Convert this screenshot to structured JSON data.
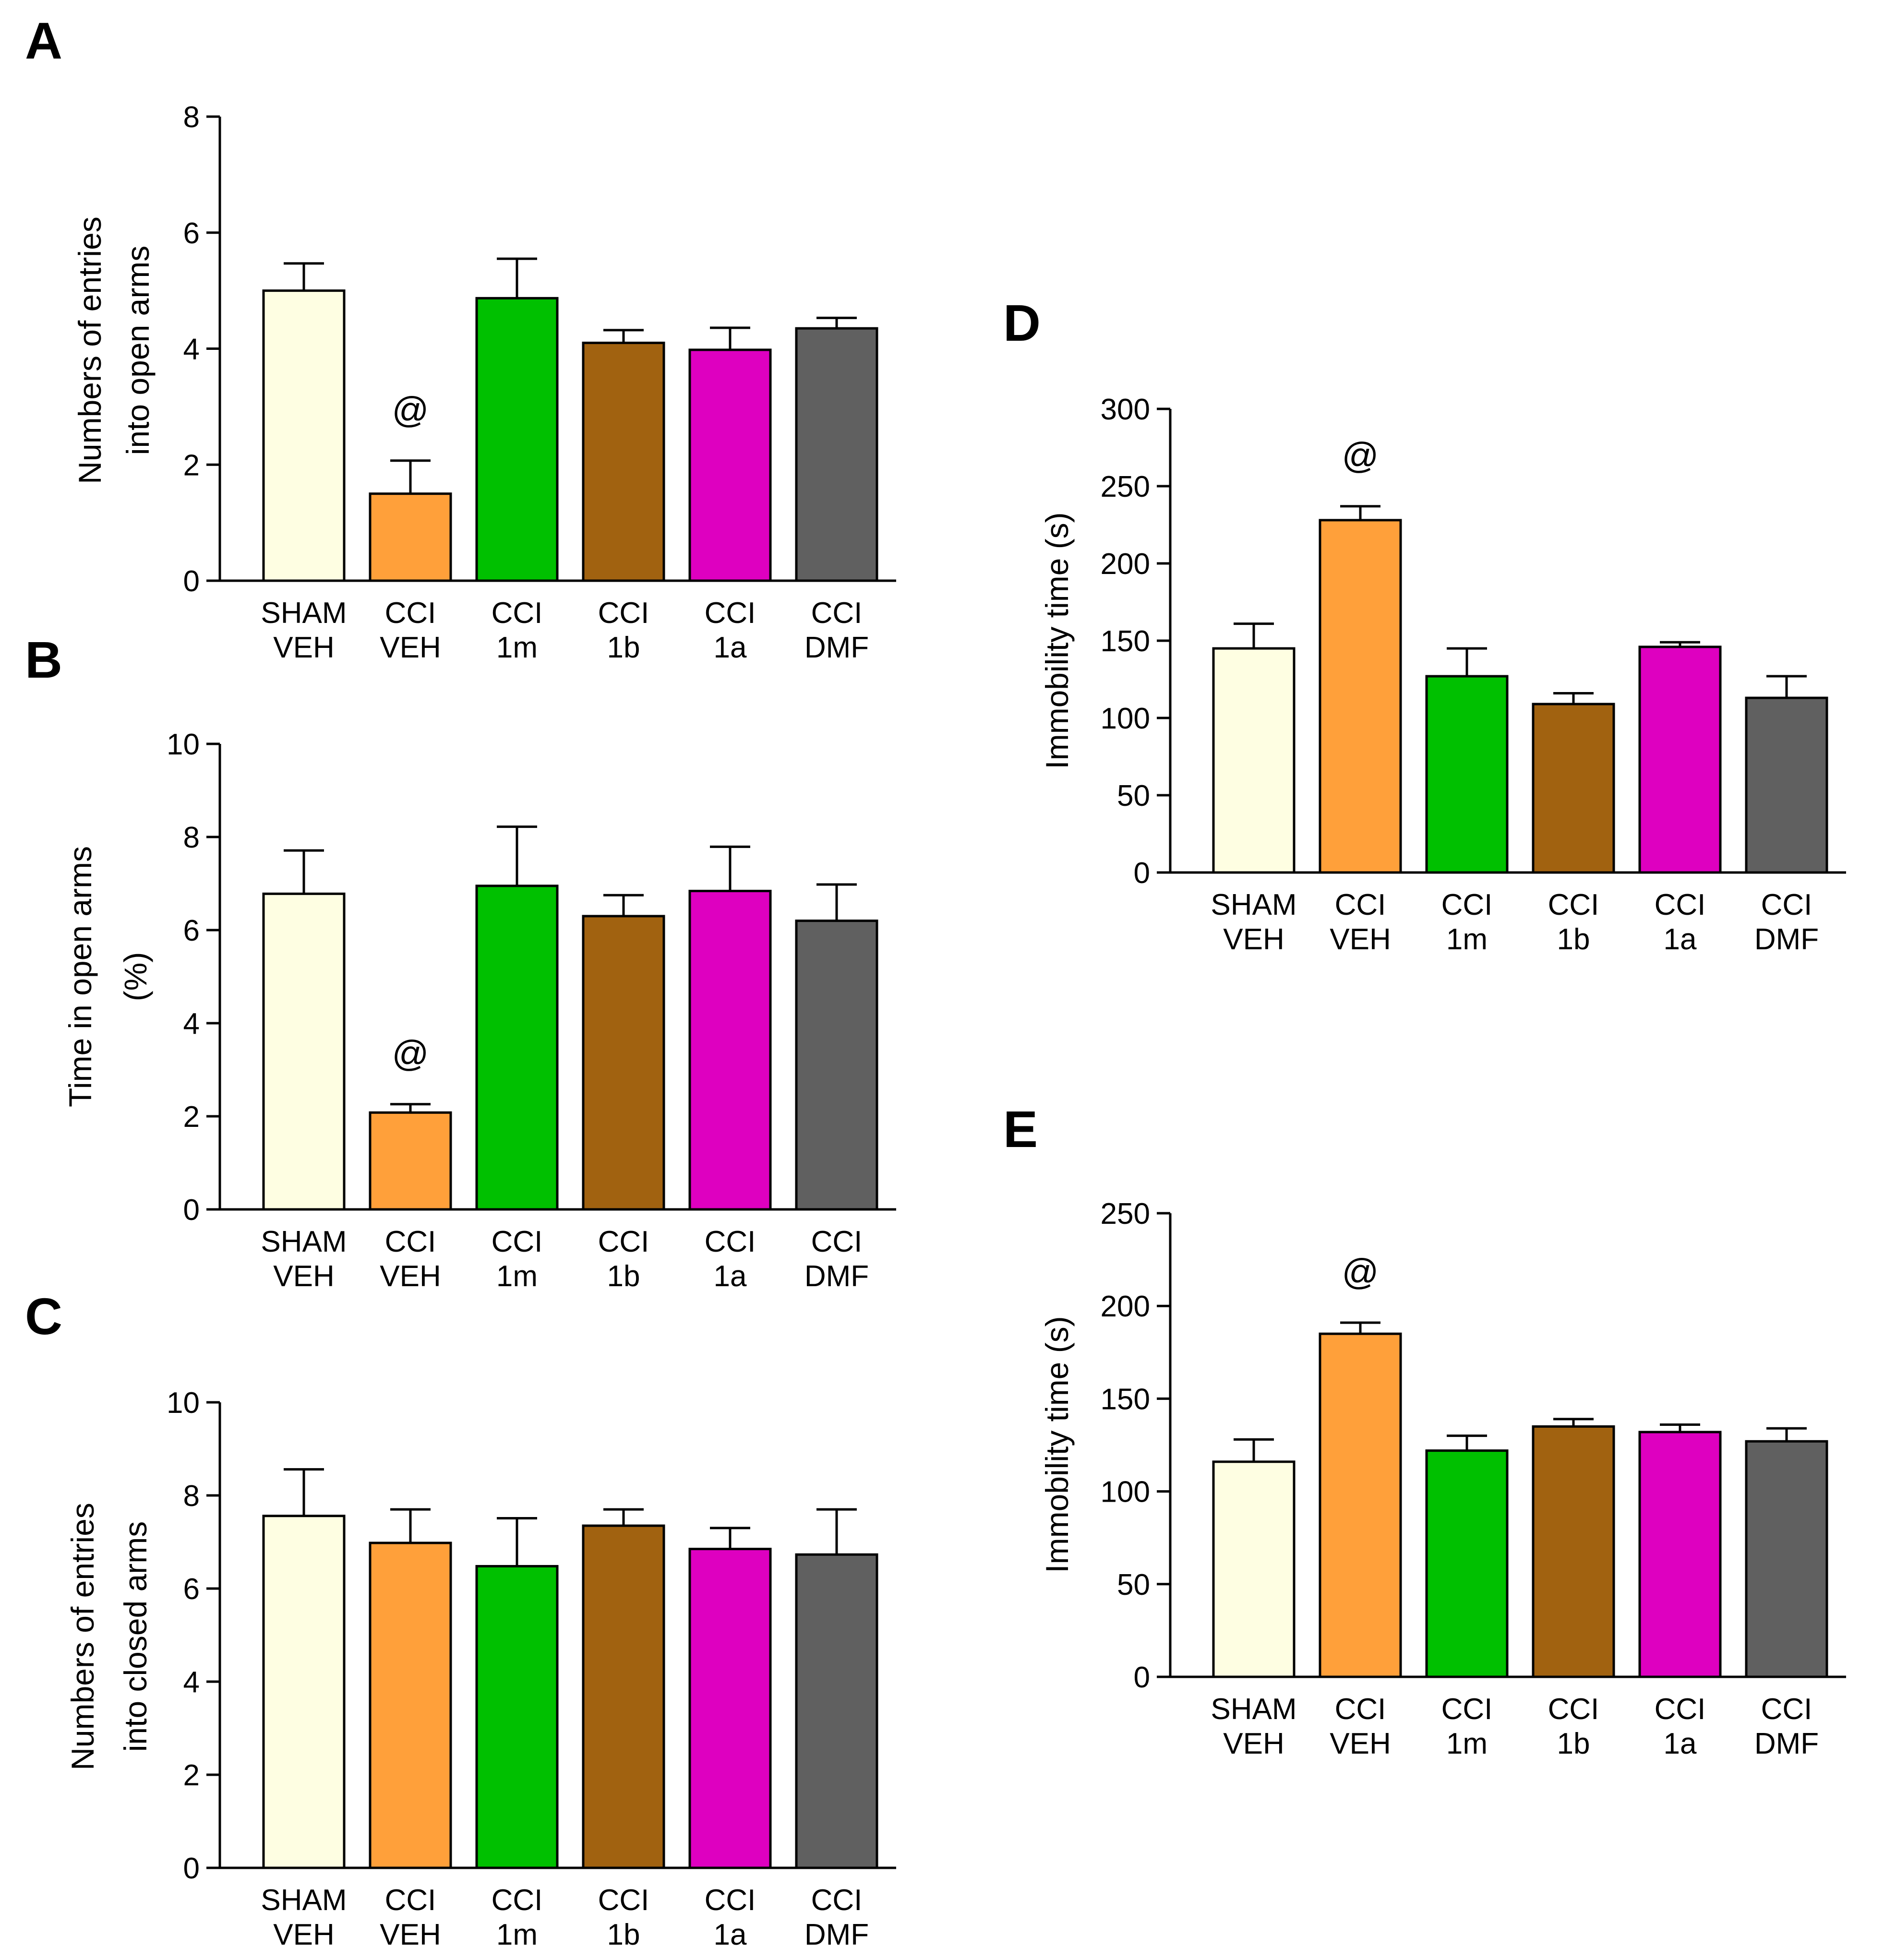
{
  "colors": {
    "SHAM VEH": "#fefee2",
    "CCI VEH": "#ffa03a",
    "CCI 1m": "#00c000",
    "CCI 1b": "#a16210",
    "CCI 1a": "#de00c0",
    "CCI DMF": "#606060"
  },
  "chart_data": [
    {
      "panel": "A",
      "type": "bar",
      "categories": [
        [
          "SHAM",
          "VEH"
        ],
        [
          "CCI",
          "VEH"
        ],
        [
          "CCI",
          "1m"
        ],
        [
          "CCI",
          "1b"
        ],
        [
          "CCI",
          "1a"
        ],
        [
          "CCI",
          "DMF"
        ]
      ],
      "values": [
        5.0,
        1.5,
        4.87,
        4.1,
        3.98,
        4.35
      ],
      "errors": [
        0.47,
        0.57,
        0.68,
        0.22,
        0.38,
        0.18
      ],
      "ylabel": [
        "Numbers of entries",
        "into open arms"
      ],
      "ylim": [
        0,
        8
      ],
      "yticks": [
        0,
        2,
        4,
        6,
        8
      ],
      "annotations": [
        {
          "index": 1,
          "text": "@"
        }
      ]
    },
    {
      "panel": "B",
      "type": "bar",
      "categories": [
        [
          "SHAM",
          "VEH"
        ],
        [
          "CCI",
          "VEH"
        ],
        [
          "CCI",
          "1m"
        ],
        [
          "CCI",
          "1b"
        ],
        [
          "CCI",
          "1a"
        ],
        [
          "CCI",
          "DMF"
        ]
      ],
      "values": [
        6.78,
        2.08,
        6.95,
        6.3,
        6.84,
        6.2
      ],
      "errors": [
        0.93,
        0.18,
        1.27,
        0.45,
        0.95,
        0.78
      ],
      "ylabel": [
        "Time in open arms",
        "(%)"
      ],
      "ylim": [
        0,
        10
      ],
      "yticks": [
        0,
        2,
        4,
        6,
        8,
        10
      ],
      "annotations": [
        {
          "index": 1,
          "text": "@"
        }
      ]
    },
    {
      "panel": "C",
      "type": "bar",
      "categories": [
        [
          "SHAM",
          "VEH"
        ],
        [
          "CCI",
          "VEH"
        ],
        [
          "CCI",
          "1m"
        ],
        [
          "CCI",
          "1b"
        ],
        [
          "CCI",
          "1a"
        ],
        [
          "CCI",
          "DMF"
        ]
      ],
      "values": [
        7.56,
        6.98,
        6.48,
        7.35,
        6.85,
        6.73
      ],
      "errors": [
        1.0,
        0.72,
        1.03,
        0.35,
        0.45,
        0.97
      ],
      "ylabel": [
        "Numbers of entries",
        "into closed arms"
      ],
      "ylim": [
        0,
        10
      ],
      "yticks": [
        0,
        2,
        4,
        6,
        8,
        10
      ],
      "annotations": []
    },
    {
      "panel": "D",
      "type": "bar",
      "categories": [
        [
          "SHAM",
          "VEH"
        ],
        [
          "CCI",
          "VEH"
        ],
        [
          "CCI",
          "1m"
        ],
        [
          "CCI",
          "1b"
        ],
        [
          "CCI",
          "1a"
        ],
        [
          "CCI",
          "DMF"
        ]
      ],
      "values": [
        145,
        228,
        127,
        109,
        146,
        113
      ],
      "errors": [
        16,
        9,
        18,
        7,
        3,
        14
      ],
      "ylabel": [
        "Immobility time (s)"
      ],
      "ylim": [
        0,
        300
      ],
      "yticks": [
        0,
        50,
        100,
        150,
        200,
        250,
        300
      ],
      "annotations": [
        {
          "index": 1,
          "text": "@"
        }
      ]
    },
    {
      "panel": "E",
      "type": "bar",
      "categories": [
        [
          "SHAM",
          "VEH"
        ],
        [
          "CCI",
          "VEH"
        ],
        [
          "CCI",
          "1m"
        ],
        [
          "CCI",
          "1b"
        ],
        [
          "CCI",
          "1a"
        ],
        [
          "CCI",
          "DMF"
        ]
      ],
      "values": [
        116,
        185,
        122,
        135,
        132,
        127
      ],
      "errors": [
        12,
        6,
        8,
        4,
        4,
        7
      ],
      "ylabel": [
        "Immobility time (s)"
      ],
      "ylim": [
        0,
        250
      ],
      "yticks": [
        0,
        50,
        100,
        150,
        200,
        250
      ],
      "annotations": [
        {
          "index": 1,
          "text": "@"
        }
      ]
    }
  ]
}
